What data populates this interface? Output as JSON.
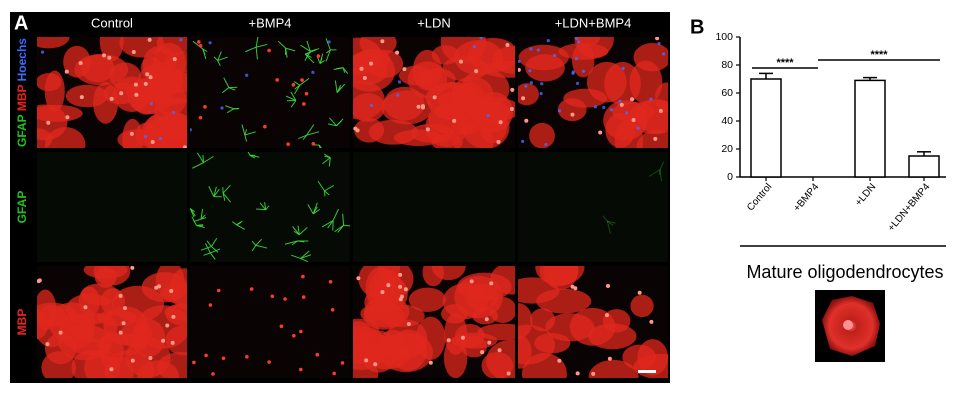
{
  "panel_a": {
    "label": "A",
    "columns": [
      "Control",
      "+BMP4",
      "+LDN",
      "+LDN+BMP4"
    ],
    "row_labels": [
      [
        "GFAP",
        "MBP",
        "Hoechs"
      ],
      [
        "GFAP"
      ],
      [
        "MBP"
      ]
    ]
  },
  "chart_data": {
    "type": "bar",
    "label": "B",
    "categories": [
      "Control",
      "+BMP4",
      "+LDN",
      "+LDN+BMP4"
    ],
    "values": [
      70,
      0,
      69,
      15
    ],
    "errors": [
      4,
      0,
      2,
      3
    ],
    "color": "#ffffff",
    "ylim": [
      0,
      100
    ],
    "yticks": [
      0,
      20,
      40,
      60,
      80,
      100
    ],
    "annotations": [
      "****",
      "****"
    ],
    "caption": "Mature oligodendrocytes"
  }
}
